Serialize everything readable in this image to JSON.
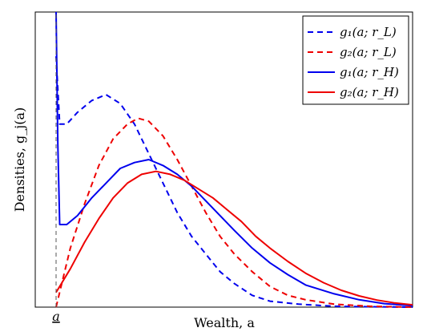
{
  "chart_data": {
    "type": "line",
    "xlabel": "Wealth, a",
    "ylabel": "Densities, g_j(a)",
    "x_tick_label": "a",
    "xlim": [
      0,
      100
    ],
    "ylim": [
      0,
      1.0
    ],
    "grid": false,
    "legend_position": "top-right",
    "series": [
      {
        "name": "g₁(a; r_L)",
        "color": "#0000ee",
        "dash": "dashed",
        "points": [
          [
            0,
            0.85
          ],
          [
            1,
            0.62
          ],
          [
            3,
            0.62
          ],
          [
            6,
            0.66
          ],
          [
            10,
            0.7
          ],
          [
            14,
            0.72
          ],
          [
            18,
            0.69
          ],
          [
            22,
            0.62
          ],
          [
            26,
            0.52
          ],
          [
            30,
            0.42
          ],
          [
            34,
            0.32
          ],
          [
            38,
            0.24
          ],
          [
            42,
            0.18
          ],
          [
            46,
            0.12
          ],
          [
            50,
            0.08
          ],
          [
            55,
            0.04
          ],
          [
            60,
            0.02
          ],
          [
            68,
            0.01
          ],
          [
            78,
            0.003
          ],
          [
            90,
            0.001
          ],
          [
            100,
            0.0
          ]
        ]
      },
      {
        "name": "g₂(a; r_L)",
        "color": "#ee0000",
        "dash": "dashed",
        "points": [
          [
            0,
            0.0
          ],
          [
            4,
            0.2
          ],
          [
            8,
            0.35
          ],
          [
            12,
            0.48
          ],
          [
            16,
            0.57
          ],
          [
            20,
            0.62
          ],
          [
            23,
            0.64
          ],
          [
            26,
            0.63
          ],
          [
            30,
            0.58
          ],
          [
            34,
            0.5
          ],
          [
            38,
            0.41
          ],
          [
            42,
            0.32
          ],
          [
            46,
            0.24
          ],
          [
            50,
            0.18
          ],
          [
            55,
            0.12
          ],
          [
            60,
            0.07
          ],
          [
            65,
            0.04
          ],
          [
            70,
            0.025
          ],
          [
            78,
            0.01
          ],
          [
            88,
            0.003
          ],
          [
            100,
            0.0
          ]
        ]
      },
      {
        "name": "g₁(a; r_H)",
        "color": "#0000ee",
        "dash": "solid",
        "points": [
          [
            0,
            1.0
          ],
          [
            0.5,
            0.55
          ],
          [
            1,
            0.28
          ],
          [
            3,
            0.28
          ],
          [
            6,
            0.31
          ],
          [
            10,
            0.37
          ],
          [
            14,
            0.42
          ],
          [
            18,
            0.47
          ],
          [
            22,
            0.49
          ],
          [
            26,
            0.5
          ],
          [
            30,
            0.48
          ],
          [
            34,
            0.45
          ],
          [
            38,
            0.41
          ],
          [
            42,
            0.36
          ],
          [
            46,
            0.31
          ],
          [
            50,
            0.26
          ],
          [
            55,
            0.2
          ],
          [
            60,
            0.15
          ],
          [
            65,
            0.11
          ],
          [
            70,
            0.075
          ],
          [
            78,
            0.045
          ],
          [
            85,
            0.025
          ],
          [
            92,
            0.012
          ],
          [
            100,
            0.005
          ]
        ]
      },
      {
        "name": "g₂(a; r_H)",
        "color": "#ee0000",
        "dash": "solid",
        "points": [
          [
            0,
            0.05
          ],
          [
            4,
            0.13
          ],
          [
            8,
            0.22
          ],
          [
            12,
            0.3
          ],
          [
            16,
            0.37
          ],
          [
            20,
            0.42
          ],
          [
            24,
            0.45
          ],
          [
            28,
            0.46
          ],
          [
            32,
            0.45
          ],
          [
            36,
            0.43
          ],
          [
            40,
            0.4
          ],
          [
            44,
            0.37
          ],
          [
            48,
            0.33
          ],
          [
            52,
            0.29
          ],
          [
            56,
            0.24
          ],
          [
            60,
            0.2
          ],
          [
            65,
            0.155
          ],
          [
            70,
            0.115
          ],
          [
            75,
            0.083
          ],
          [
            80,
            0.057
          ],
          [
            85,
            0.038
          ],
          [
            90,
            0.024
          ],
          [
            95,
            0.014
          ],
          [
            100,
            0.008
          ]
        ]
      }
    ]
  }
}
